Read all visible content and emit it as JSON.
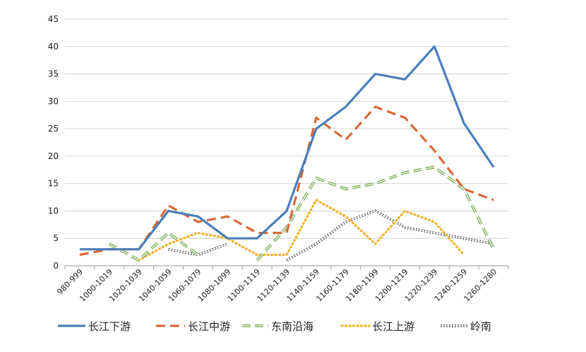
{
  "chart_data": {
    "type": "line",
    "title": "",
    "xlabel": "",
    "ylabel": "",
    "ylim": [
      0,
      45
    ],
    "yticks": [
      0,
      5,
      10,
      15,
      20,
      25,
      30,
      35,
      40,
      45
    ],
    "grid": "horizontal",
    "legend_position": "bottom",
    "categories": [
      "980-999",
      "1000-1019",
      "1020-1039",
      "1040-1059",
      "1060-1079",
      "1080-1099",
      "1100-1119",
      "1120-1139",
      "1140-1159",
      "1160-1179",
      "1180-1199",
      "1200-1219",
      "1220-1239",
      "1240-1259",
      "1260-1280"
    ],
    "series": [
      {
        "name": "长江下游",
        "color": "#4a7ebb",
        "style": "solid",
        "values": [
          3,
          3,
          3,
          10,
          9,
          5,
          5,
          10,
          25,
          29,
          35,
          34,
          40,
          26,
          18
        ]
      },
      {
        "name": "长江中游",
        "color": "#d9693a",
        "style": "dashed",
        "values": [
          2,
          3,
          3,
          11,
          8,
          9,
          6,
          6,
          27,
          23,
          29,
          27,
          21,
          14,
          12
        ]
      },
      {
        "name": "东南沿海",
        "color": "#7fae5a",
        "style": "double-dash",
        "values": [
          null,
          4,
          1,
          6,
          2,
          null,
          1,
          7,
          16,
          14,
          15,
          17,
          18,
          14,
          3
        ]
      },
      {
        "name": "长江上游",
        "color": "#f2b530",
        "style": "dotted",
        "values": [
          null,
          null,
          1,
          4,
          6,
          5,
          2,
          2,
          12,
          9,
          4,
          10,
          8,
          2,
          null
        ]
      },
      {
        "name": "岭南",
        "color": "#333333",
        "style": "double-dot",
        "values": [
          null,
          null,
          null,
          3,
          2,
          4,
          null,
          1,
          4,
          8,
          10,
          7,
          6,
          5,
          4
        ]
      }
    ]
  }
}
